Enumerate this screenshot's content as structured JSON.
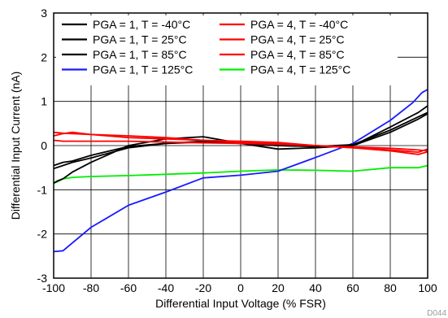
{
  "chart_data": {
    "type": "line",
    "title": "",
    "xlabel": "Differential Input Voltage (% FSR)",
    "ylabel": "Differential Input Current (nA)",
    "xlim": [
      -100,
      100
    ],
    "ylim": [
      -3,
      3
    ],
    "xticks": [
      -100,
      -80,
      -60,
      -40,
      -20,
      0,
      20,
      40,
      60,
      80,
      100
    ],
    "yticks": [
      -3,
      -2,
      -1,
      0,
      1,
      2,
      3
    ],
    "grid": true,
    "legend_position": "top",
    "figure_id": "D044",
    "series": [
      {
        "name": "PGA = 1, T = -40°C",
        "color": "#000000",
        "x": [
          -100,
          -95,
          -90,
          -80,
          -60,
          -40,
          -20,
          0,
          20,
          40,
          60,
          80,
          95,
          100
        ],
        "y": [
          -0.45,
          -0.38,
          -0.35,
          -0.22,
          -0.02,
          0.05,
          0.08,
          0.05,
          0.0,
          -0.02,
          0.0,
          0.3,
          0.6,
          0.72
        ]
      },
      {
        "name": "PGA = 1, T = 25°C",
        "color": "#000000",
        "x": [
          -100,
          -95,
          -90,
          -80,
          -60,
          -40,
          -20,
          0,
          20,
          40,
          60,
          80,
          95,
          100
        ],
        "y": [
          -0.52,
          -0.45,
          -0.38,
          -0.28,
          -0.05,
          0.05,
          0.1,
          0.05,
          0.0,
          -0.02,
          0.02,
          0.35,
          0.65,
          0.75
        ]
      },
      {
        "name": "PGA = 1, T = 85°C",
        "color": "#000000",
        "x": [
          -100,
          -98,
          -95,
          -90,
          -80,
          -60,
          -40,
          -20,
          0,
          20,
          40,
          60,
          80,
          95,
          100
        ],
        "y": [
          -0.85,
          -0.8,
          -0.75,
          -0.6,
          -0.38,
          0.0,
          0.15,
          0.2,
          0.05,
          -0.08,
          -0.05,
          0.0,
          0.42,
          0.75,
          0.9
        ]
      },
      {
        "name": "PGA = 1, T = 125°C",
        "color": "#1a1aff",
        "x": [
          -100,
          -95,
          -80,
          -60,
          -40,
          -20,
          0,
          20,
          40,
          60,
          80,
          92,
          97,
          100
        ],
        "y": [
          -2.4,
          -2.38,
          -1.85,
          -1.35,
          -1.05,
          -0.73,
          -0.67,
          -0.58,
          -0.27,
          0.05,
          0.57,
          0.97,
          1.2,
          1.27
        ]
      },
      {
        "name": "PGA = 4, T = -40°C",
        "color": "#ff0000",
        "x": [
          -100,
          -95,
          -80,
          -60,
          -40,
          -20,
          0,
          20,
          40,
          60,
          80,
          95,
          100
        ],
        "y": [
          0.3,
          0.28,
          0.25,
          0.22,
          0.18,
          0.12,
          0.08,
          0.05,
          0.0,
          -0.03,
          -0.06,
          -0.1,
          -0.12
        ]
      },
      {
        "name": "PGA = 4, T = 25°C",
        "color": "#ff0000",
        "x": [
          -100,
          -95,
          -90,
          -80,
          -60,
          -40,
          -20,
          0,
          20,
          40,
          60,
          80,
          95,
          100
        ],
        "y": [
          0.22,
          0.27,
          0.3,
          0.25,
          0.18,
          0.15,
          0.12,
          0.1,
          0.07,
          0.0,
          -0.05,
          -0.12,
          -0.2,
          -0.14
        ]
      },
      {
        "name": "PGA = 4, T = 85°C",
        "color": "#ff0000",
        "x": [
          -100,
          -95,
          -80,
          -60,
          -40,
          -20,
          0,
          20,
          40,
          60,
          80,
          95,
          100
        ],
        "y": [
          0.12,
          0.1,
          0.1,
          0.1,
          0.08,
          0.06,
          0.05,
          0.03,
          0.0,
          -0.05,
          -0.1,
          -0.15,
          -0.08
        ]
      },
      {
        "name": "PGA = 4, T = 125°C",
        "color": "#00ee00",
        "x": [
          -100,
          -98,
          -95,
          -90,
          -80,
          -60,
          -40,
          -20,
          0,
          20,
          40,
          60,
          80,
          95,
          100
        ],
        "y": [
          -0.85,
          -0.82,
          -0.75,
          -0.72,
          -0.7,
          -0.68,
          -0.65,
          -0.62,
          -0.58,
          -0.55,
          -0.56,
          -0.58,
          -0.5,
          -0.5,
          -0.45
        ]
      }
    ]
  }
}
